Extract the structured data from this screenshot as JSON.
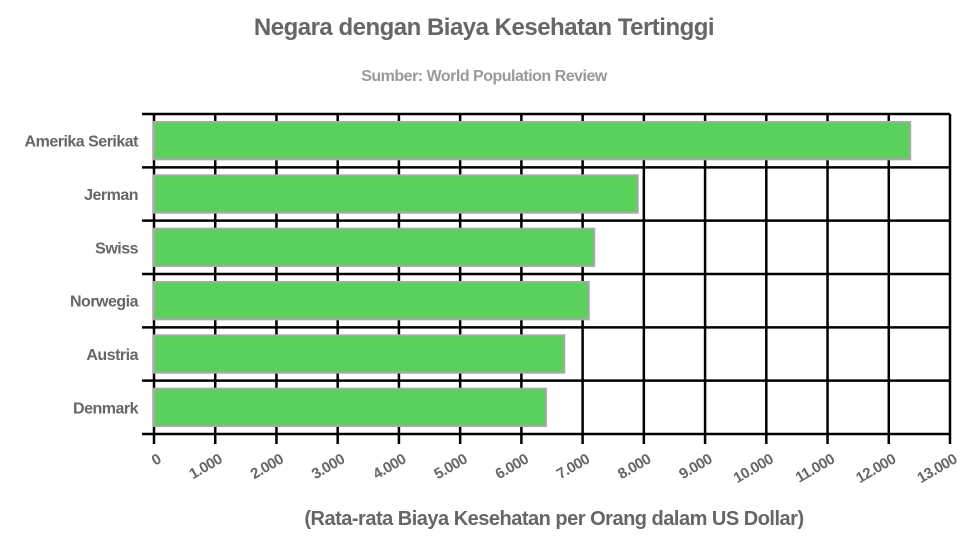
{
  "chart_data": {
    "type": "bar",
    "orientation": "horizontal",
    "title": "Negara dengan Biaya Kesehatan Tertinggi",
    "subtitle": "Sumber: World Population Review",
    "xlabel": "(Rata-rata Biaya Kesehatan per Orang dalam US Dollar)",
    "ylabel": "",
    "categories": [
      "Amerika Serikat",
      "Jerman",
      "Swiss",
      "Norwegia",
      "Austria",
      "Denmark"
    ],
    "values": [
      12350,
      7900,
      7190,
      7100,
      6700,
      6400
    ],
    "xlim": [
      0,
      13000
    ],
    "xticks": [
      "0",
      "1.000",
      "2.000",
      "3.000",
      "4.000",
      "5.000",
      "6.000",
      "7.000",
      "8.000",
      "9.000",
      "10.000",
      "11.000",
      "12.000",
      "13.000"
    ],
    "grid": true,
    "legend": null,
    "colors": {
      "bar": "#5ad15a",
      "bar_border": "#a8a8a8",
      "grid": "#000000",
      "text": "#666666",
      "subtitle": "#999999"
    }
  }
}
